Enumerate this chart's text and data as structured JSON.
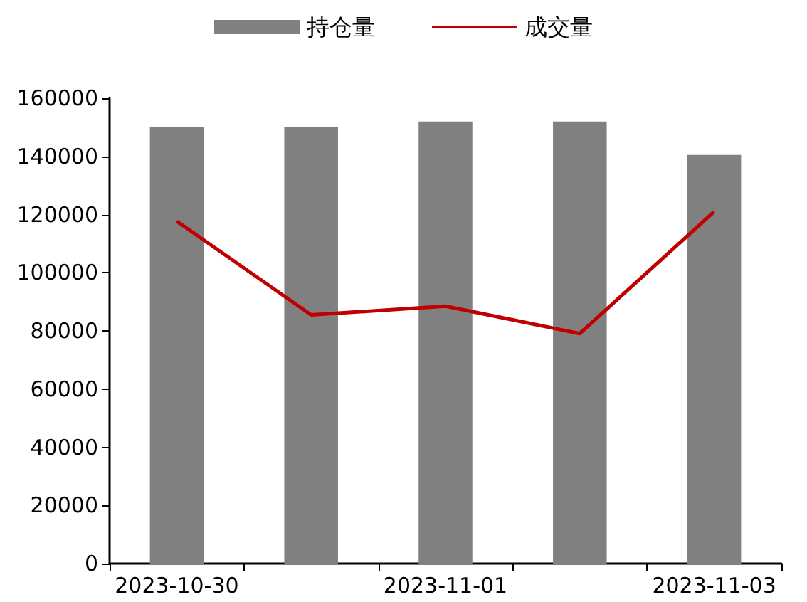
{
  "chart_data": {
    "type": "bar",
    "categories": [
      "2023-10-30",
      null,
      "2023-11-01",
      null,
      "2023-11-03"
    ],
    "series": [
      {
        "name": "持仓量",
        "color": "#808080",
        "values": [
          150000,
          150000,
          152000,
          152000,
          140500
        ]
      },
      {
        "name": "成交量",
        "type": "line",
        "color": "#c00000",
        "values": [
          117700,
          85500,
          88500,
          79100,
          121000
        ]
      }
    ],
    "ylim": [
      0,
      160000
    ],
    "yticks": [
      0,
      20000,
      40000,
      60000,
      80000,
      100000,
      120000,
      140000,
      160000
    ],
    "grid": false,
    "legend": "top",
    "marker": "none"
  }
}
